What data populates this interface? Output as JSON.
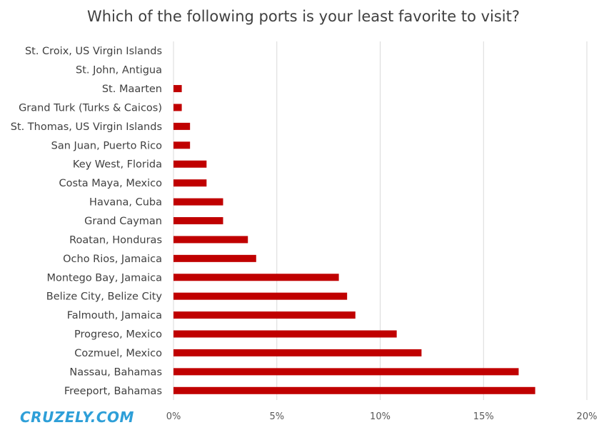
{
  "chart_data": {
    "type": "bar",
    "orientation": "horizontal",
    "title": "Which of the following ports is your least favorite to visit?",
    "categories": [
      "St. Croix, US Virgin Islands",
      "St. John, Antigua",
      "St. Maarten",
      "Grand Turk (Turks & Caicos)",
      "St. Thomas, US Virgin Islands",
      "San Juan, Puerto Rico",
      "Key West, Florida",
      "Costa Maya, Mexico",
      "Havana, Cuba",
      "Grand Cayman",
      "Roatan, Honduras",
      "Ocho Rios, Jamaica",
      "Montego Bay, Jamaica",
      "Belize City, Belize City",
      "Falmouth, Jamaica",
      "Progreso, Mexico",
      "Cozmuel, Mexico",
      "Nassau, Bahamas",
      "Freeport, Bahamas"
    ],
    "values": [
      0,
      0,
      0.4,
      0.4,
      0.8,
      0.8,
      1.6,
      1.6,
      2.4,
      2.4,
      3.6,
      4.0,
      8.0,
      8.4,
      8.8,
      10.8,
      12.0,
      16.7,
      17.5
    ],
    "xlim": [
      0,
      20
    ],
    "xticks": [
      0,
      5,
      10,
      15,
      20
    ],
    "xtick_labels": [
      "0%",
      "5%",
      "10%",
      "15%",
      "20%"
    ],
    "grid": "vertical",
    "bar_color": "#c00000"
  },
  "watermark": "CRUZELY.COM"
}
